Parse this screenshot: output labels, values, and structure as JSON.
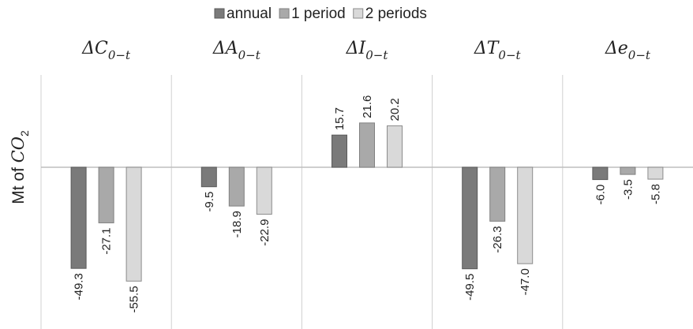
{
  "chart_data": {
    "type": "bar",
    "categories": [
      "ΔC",
      "ΔA",
      "ΔI",
      "ΔT",
      "Δe"
    ],
    "category_subscripts": [
      "0−t",
      "0−t",
      "0−t",
      "0−t",
      "0−t"
    ],
    "y_label": [
      "Mt of ",
      "CO",
      "2"
    ],
    "series": [
      {
        "name": "annual",
        "color": "#7a7a7a",
        "values": [
          -49.3,
          -9.5,
          15.7,
          -49.5,
          -6.0
        ],
        "value_labels": [
          "-49.3",
          "-9.5",
          "15.7",
          "-49.5",
          "-6.0"
        ]
      },
      {
        "name": "1 period",
        "color": "#a9a9a9",
        "values": [
          -27.1,
          -18.9,
          21.6,
          -26.3,
          -3.5
        ],
        "value_labels": [
          "-27.1",
          "-18.9",
          "21.6",
          "-26.3",
          "-3.5"
        ]
      },
      {
        "name": "2 periods",
        "color": "#d9d9d9",
        "values": [
          -55.5,
          -22.9,
          20.2,
          -47.0,
          -5.8
        ],
        "value_labels": [
          "-55.5",
          "-22.9",
          "20.2",
          "-47.0",
          "-5.8"
        ]
      }
    ],
    "ylim": [
      -74,
      45
    ],
    "legend": "top"
  }
}
